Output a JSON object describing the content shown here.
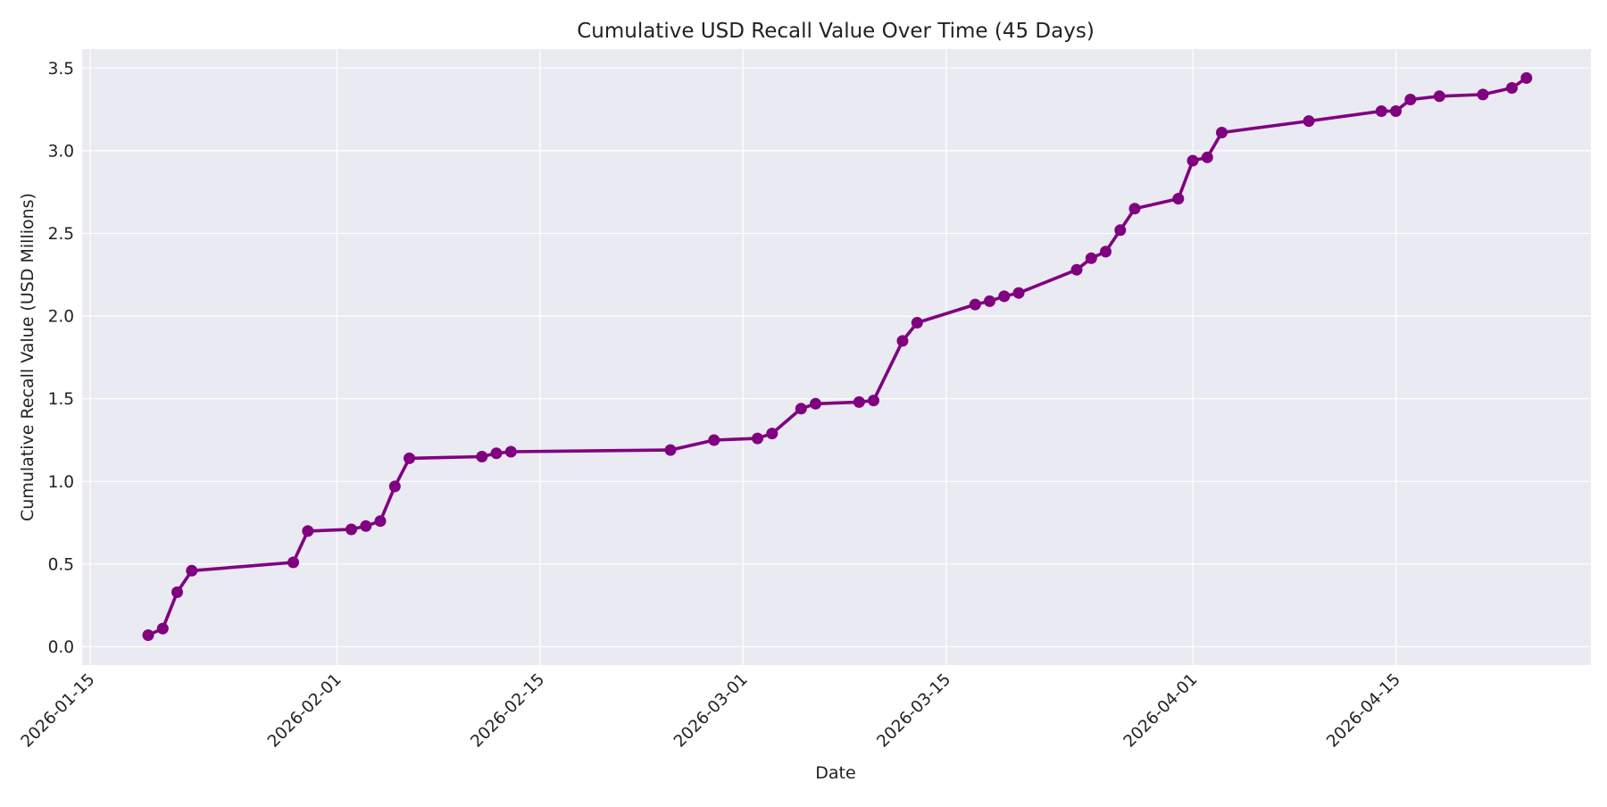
{
  "chart_data": {
    "type": "line",
    "title": "Cumulative USD Recall Value Over Time (45 Days)",
    "xlabel": "Date",
    "ylabel": "Cumulative Recall Value (USD Millions)",
    "x_range": [
      "2026-01-15",
      "2026-04-26"
    ],
    "ylim": [
      -0.1,
      3.6
    ],
    "x_ticks": [
      "2026-01-15",
      "2026-02-01",
      "2026-02-15",
      "2026-03-01",
      "2026-03-15",
      "2026-04-01",
      "2026-04-15"
    ],
    "y_ticks": [
      "0.0",
      "0.5",
      "1.0",
      "1.5",
      "2.0",
      "2.5",
      "3.0",
      "3.5"
    ],
    "grid": true,
    "colors": {
      "line": "#800080",
      "plot_background": "#eaeaf2",
      "grid": "#ffffff"
    },
    "series": [
      {
        "x": [
          "2026-01-19",
          "2026-01-20",
          "2026-01-21",
          "2026-01-22",
          "2026-01-29",
          "2026-01-30",
          "2026-02-02",
          "2026-02-03",
          "2026-02-04",
          "2026-02-05",
          "2026-02-06",
          "2026-02-11",
          "2026-02-12",
          "2026-02-13",
          "2026-02-24",
          "2026-02-27",
          "2026-03-02",
          "2026-03-03",
          "2026-03-05",
          "2026-03-06",
          "2026-03-09",
          "2026-03-10",
          "2026-03-12",
          "2026-03-13",
          "2026-03-17",
          "2026-03-18",
          "2026-03-19",
          "2026-03-20",
          "2026-03-24",
          "2026-03-25",
          "2026-03-26",
          "2026-03-27",
          "2026-03-28",
          "2026-03-31",
          "2026-04-01",
          "2026-04-02",
          "2026-04-03",
          "2026-04-09",
          "2026-04-14",
          "2026-04-15",
          "2026-04-16",
          "2026-04-18",
          "2026-04-21",
          "2026-04-23",
          "2026-04-24"
        ],
        "values": [
          0.07,
          0.11,
          0.33,
          0.46,
          0.51,
          0.7,
          0.71,
          0.73,
          0.76,
          0.97,
          1.14,
          1.15,
          1.17,
          1.18,
          1.19,
          1.25,
          1.26,
          1.29,
          1.44,
          1.47,
          1.48,
          1.49,
          1.85,
          1.96,
          2.07,
          2.09,
          2.12,
          2.14,
          2.28,
          2.35,
          2.39,
          2.52,
          2.65,
          2.71,
          2.94,
          2.96,
          3.11,
          3.18,
          3.24,
          3.24,
          3.31,
          3.33,
          3.34,
          3.38,
          3.44
        ]
      }
    ]
  }
}
